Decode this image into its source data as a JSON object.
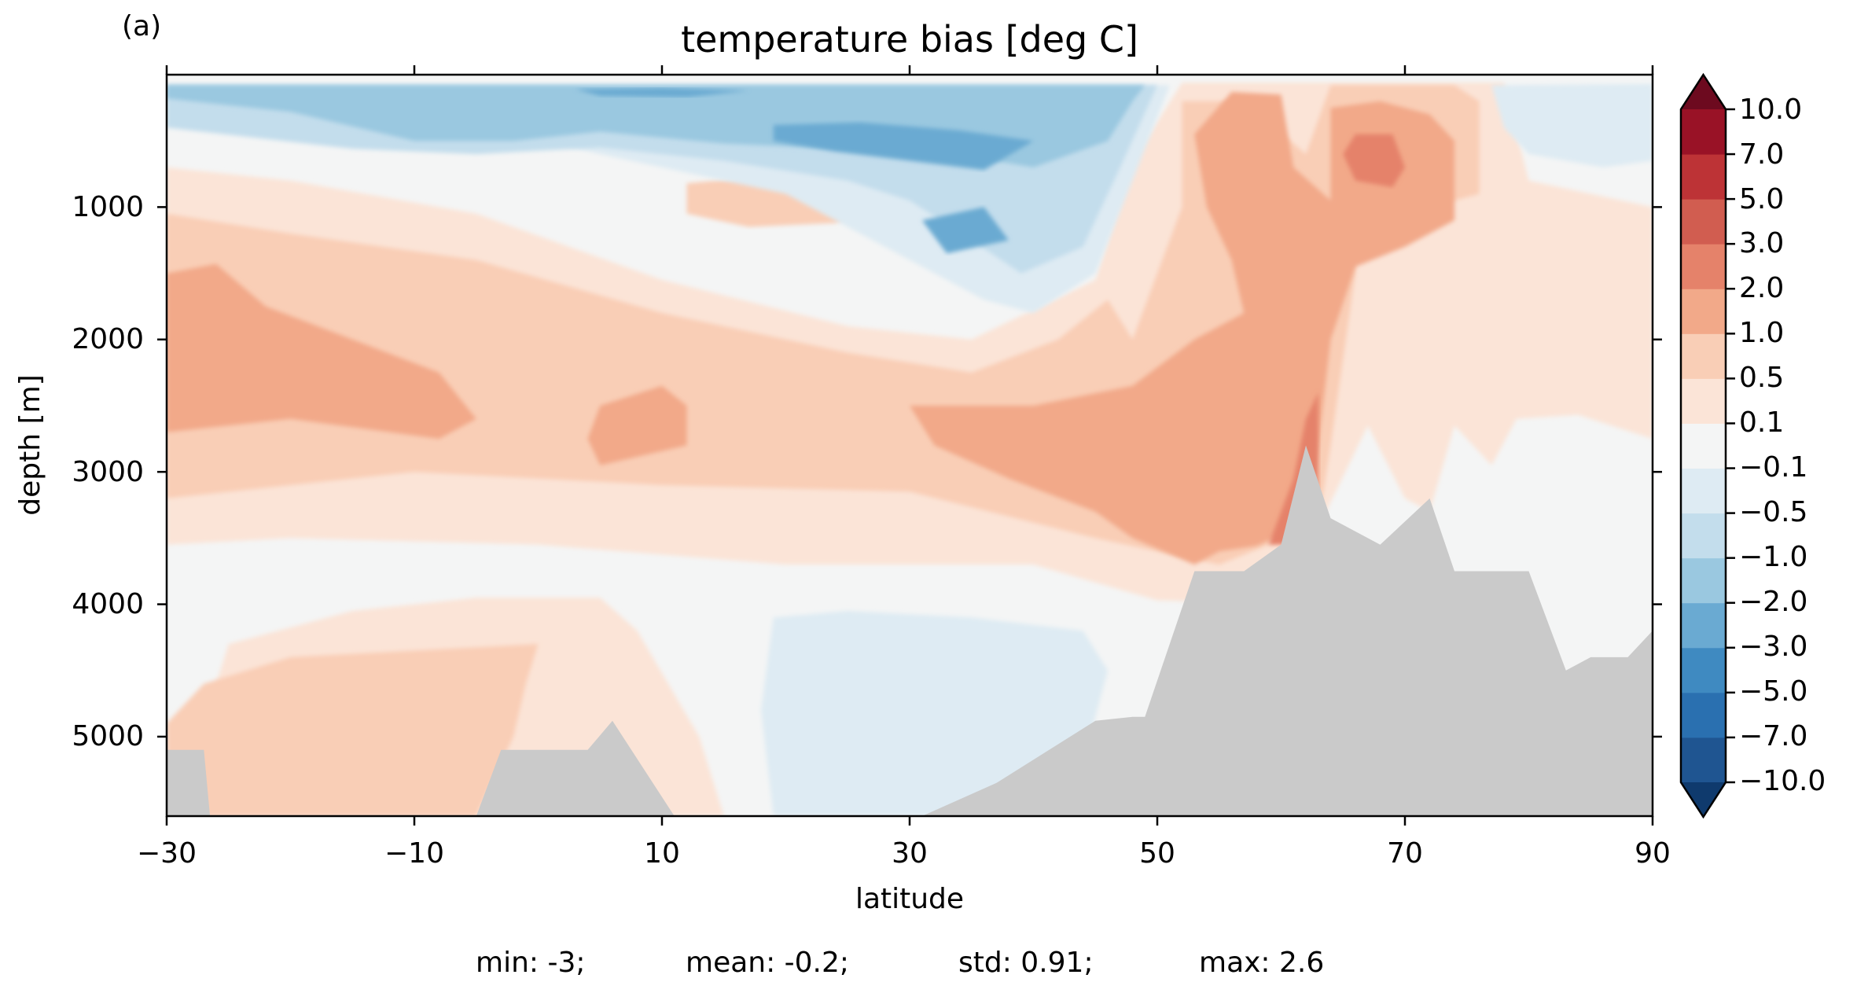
{
  "chart_data": {
    "type": "heatmap",
    "panel_label": "(a)",
    "title": "temperature bias [deg C]",
    "xlabel": "latitude",
    "ylabel": "depth [m]",
    "xlim": [
      -30,
      90
    ],
    "ylim": [
      5600,
      0
    ],
    "y_inverted": true,
    "xticks": [
      -30,
      -10,
      10,
      30,
      50,
      70,
      90
    ],
    "xtick_labels": [
      "−30",
      "−10",
      "10",
      "30",
      "50",
      "70",
      "90"
    ],
    "yticks": [
      1000,
      2000,
      3000,
      4000,
      5000
    ],
    "ytick_labels": [
      "1000",
      "2000",
      "3000",
      "4000",
      "5000"
    ],
    "colorbar": {
      "levels": [
        -10.0,
        -7.0,
        -5.0,
        -3.0,
        -2.0,
        -1.0,
        -0.5,
        -0.1,
        0.1,
        0.5,
        1.0,
        2.0,
        3.0,
        5.0,
        7.0,
        10.0
      ],
      "tick_labels": [
        "−10.0",
        "−7.0",
        "−5.0",
        "−3.0",
        "−2.0",
        "−1.0",
        "−0.5",
        "−0.1",
        "0.1",
        "0.5",
        "1.0",
        "2.0",
        "3.0",
        "5.0",
        "7.0",
        "10.0"
      ],
      "colors": [
        "#1f5591",
        "#2a70b0",
        "#3f8ac1",
        "#6aaad2",
        "#9ac8e0",
        "#c3ddec",
        "#deebf3",
        "#f4f5f5",
        "#fbe4d7",
        "#f9ceb6",
        "#f2a989",
        "#e5826a",
        "#d15d50",
        "#bd3336",
        "#991226"
      ],
      "extend": "both",
      "under_color": "#0f3a6d",
      "over_color": "#6d0a1f"
    },
    "land_color": "#cacaca",
    "bathymetry": {
      "lat": [
        -30,
        -27,
        -26.5,
        -25,
        -24.5,
        -19,
        -18.5,
        -5,
        -3,
        4,
        6,
        11,
        16,
        17,
        30,
        31,
        37,
        45,
        48,
        49,
        53,
        57,
        60,
        62,
        64,
        68,
        72,
        74,
        77,
        80,
        83,
        85,
        88,
        90
      ],
      "depth": [
        5100,
        5100,
        5600,
        5600,
        5600,
        5600,
        5600,
        5600,
        5100,
        5100,
        4880,
        5600,
        5600,
        5600,
        5600,
        5600,
        5350,
        4880,
        4850,
        4850,
        3750,
        3750,
        3550,
        2800,
        3350,
        3550,
        3200,
        3750,
        3750,
        3750,
        4500,
        4400,
        4400,
        4200
      ]
    },
    "stats": {
      "min": "min: -3;",
      "mean": "mean: -0.2;",
      "std": "std: 0.91;",
      "max": "max: 2.6"
    }
  }
}
